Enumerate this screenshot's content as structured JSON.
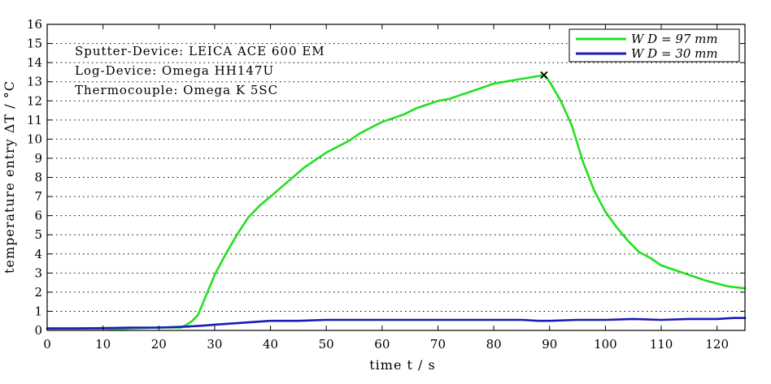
{
  "chart_data": {
    "type": "line",
    "xlabel": "time t / s",
    "ylabel": "temperature entry ΔT / °C",
    "xlim": [
      0,
      125
    ],
    "ylim": [
      0,
      16
    ],
    "xticks": [
      0,
      10,
      20,
      30,
      40,
      50,
      60,
      70,
      80,
      90,
      100,
      110,
      120
    ],
    "yticks": [
      0,
      1,
      2,
      3,
      4,
      5,
      6,
      7,
      8,
      9,
      10,
      11,
      12,
      13,
      14,
      15,
      16
    ],
    "grid": "horizontal-dotted",
    "legend_position": "top-right",
    "annotations": [
      "Sputter-Device: LEICA ACE 600 EM",
      "Log-Device: Omega HH147U",
      "Thermocouple: Omega K 5SC"
    ],
    "series": [
      {
        "name": "W D = 97 mm",
        "color": "#22e022",
        "x": [
          0,
          5,
          10,
          13,
          15,
          20,
          24,
          25,
          26,
          27,
          28,
          30,
          32,
          34,
          36,
          38,
          40,
          42,
          44,
          46,
          48,
          50,
          52,
          54,
          56,
          58,
          60,
          62,
          64,
          66,
          68,
          70,
          72,
          74,
          76,
          78,
          80,
          82,
          84,
          86,
          88,
          89,
          90,
          92,
          94,
          96,
          98,
          100,
          102,
          104,
          106,
          108,
          110,
          112,
          114,
          116,
          118,
          120,
          122,
          125
        ],
        "y": [
          0.1,
          0.1,
          0.1,
          0.05,
          0.1,
          0.15,
          0.15,
          0.3,
          0.5,
          0.8,
          1.5,
          2.9,
          4.0,
          5.0,
          5.9,
          6.5,
          7.0,
          7.5,
          8.0,
          8.5,
          8.9,
          9.3,
          9.6,
          9.9,
          10.3,
          10.6,
          10.9,
          11.1,
          11.3,
          11.6,
          11.8,
          12.0,
          12.1,
          12.3,
          12.5,
          12.7,
          12.9,
          13.0,
          13.1,
          13.2,
          13.3,
          13.35,
          13.0,
          12.0,
          10.7,
          8.8,
          7.3,
          6.2,
          5.4,
          4.7,
          4.1,
          3.8,
          3.4,
          3.2,
          3.0,
          2.8,
          2.6,
          2.45,
          2.3,
          2.2
        ]
      },
      {
        "name": "W D = 30 mm",
        "color": "#1a1ab8",
        "x": [
          0,
          5,
          10,
          15,
          20,
          25,
          28,
          30,
          35,
          40,
          45,
          50,
          55,
          60,
          65,
          70,
          75,
          80,
          85,
          88,
          90,
          95,
          100,
          105,
          110,
          115,
          120,
          123,
          125
        ],
        "y": [
          0.1,
          0.1,
          0.12,
          0.15,
          0.15,
          0.2,
          0.25,
          0.3,
          0.4,
          0.5,
          0.5,
          0.55,
          0.55,
          0.55,
          0.55,
          0.55,
          0.55,
          0.55,
          0.55,
          0.5,
          0.5,
          0.55,
          0.55,
          0.6,
          0.55,
          0.6,
          0.6,
          0.65,
          0.65
        ]
      }
    ],
    "marker": {
      "x": 89,
      "y": 13.35,
      "symbol": "×"
    }
  }
}
